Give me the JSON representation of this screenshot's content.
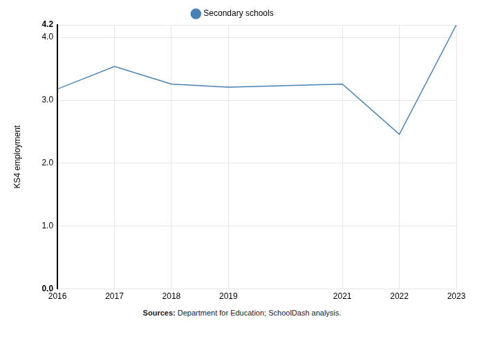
{
  "chart_data": {
    "type": "line",
    "x": [
      2016,
      2017,
      2018,
      2019,
      2021,
      2022,
      2023
    ],
    "series": [
      {
        "name": "Secondary schools",
        "color": "#4682b4",
        "marker": "none",
        "values": [
          3.18,
          3.54,
          3.26,
          3.21,
          3.26,
          2.46,
          4.2
        ]
      }
    ],
    "y_label": "KS4 employment",
    "xlim": [
      2016,
      2023
    ],
    "xticks": [
      2016,
      2017,
      2018,
      2019,
      2021,
      2022,
      2023
    ],
    "ylim": [
      0,
      4.2
    ],
    "yticks": [
      {
        "value": 0,
        "label": "0.0"
      },
      {
        "value": 1,
        "label": "1.0"
      },
      {
        "value": 2,
        "label": "2.0"
      },
      {
        "value": 3,
        "label": "3.0"
      },
      {
        "value": 4,
        "label": "4.0"
      },
      4.2
    ],
    "grid": true,
    "legend": "top",
    "source": {
      "label": "Sources:",
      "text": "Department for Education; SchoolDash analysis."
    }
  }
}
